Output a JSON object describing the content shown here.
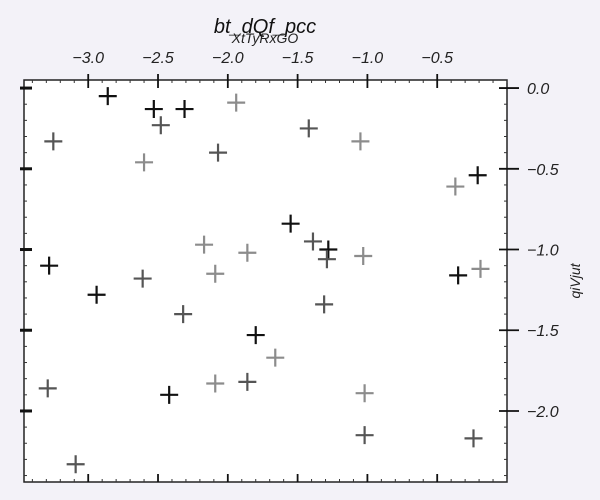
{
  "chart_data": {
    "type": "scatter",
    "title": "bt_dQf_pcc",
    "subtitle": "XtTyRxGO",
    "xlabel": "",
    "ylabel": "qiVjut",
    "x_axis_position": "top",
    "y_axis_position": "right",
    "xlim": [
      -3.46,
      -0.0
    ],
    "ylim": [
      -2.44,
      0.05
    ],
    "xticks": [
      -3.0,
      -2.5,
      -2.0,
      -1.5,
      -1.0,
      -0.5
    ],
    "xtick_labels": [
      "−3.0",
      "−2.5",
      "−2.0",
      "−1.5",
      "−1.0",
      "−0.5"
    ],
    "yticks": [
      0.0,
      -0.5,
      -1.0,
      -1.5,
      -2.0
    ],
    "ytick_labels": [
      "0.0",
      "−0.5",
      "−1.0",
      "−1.5",
      "−2.0"
    ],
    "grid": false,
    "legend": "none",
    "colors": {
      "background": "#ffffff",
      "page": "#f3f2f8",
      "black": "#111111",
      "dark_gray": "#555555",
      "light_gray": "#8c8c8c"
    },
    "marker": "plus",
    "series": [
      {
        "color": "#111111",
        "x": [
          -2.86,
          -2.53,
          -2.31,
          -3.28,
          -2.94,
          -1.55,
          -1.28,
          -2.42,
          -1.8,
          -0.35,
          -0.21
        ],
        "y": [
          -0.05,
          -0.13,
          -0.13,
          -1.1,
          -1.28,
          -0.84,
          -1.0,
          -1.9,
          -1.53,
          -1.16,
          -0.54
        ]
      },
      {
        "color": "#555555",
        "x": [
          -3.25,
          -2.48,
          -2.07,
          -1.42,
          -1.39,
          -1.29,
          -1.31,
          -2.61,
          -2.32,
          -1.86,
          -3.29,
          -3.09,
          -1.02,
          -0.24
        ],
        "y": [
          -0.33,
          -0.23,
          -0.4,
          -0.25,
          -0.95,
          -1.06,
          -1.34,
          -1.18,
          -1.4,
          -1.82,
          -1.86,
          -2.33,
          -2.15,
          -2.17
        ]
      },
      {
        "color": "#8c8c8c",
        "x": [
          -1.94,
          -2.6,
          -1.05,
          -2.17,
          -2.09,
          -1.86,
          -1.66,
          -2.09,
          -1.03,
          -1.02,
          -0.37,
          -0.19
        ],
        "y": [
          -0.09,
          -0.46,
          -0.33,
          -0.97,
          -1.15,
          -1.02,
          -1.67,
          -1.83,
          -1.04,
          -1.89,
          -0.61,
          -1.12
        ]
      }
    ]
  }
}
